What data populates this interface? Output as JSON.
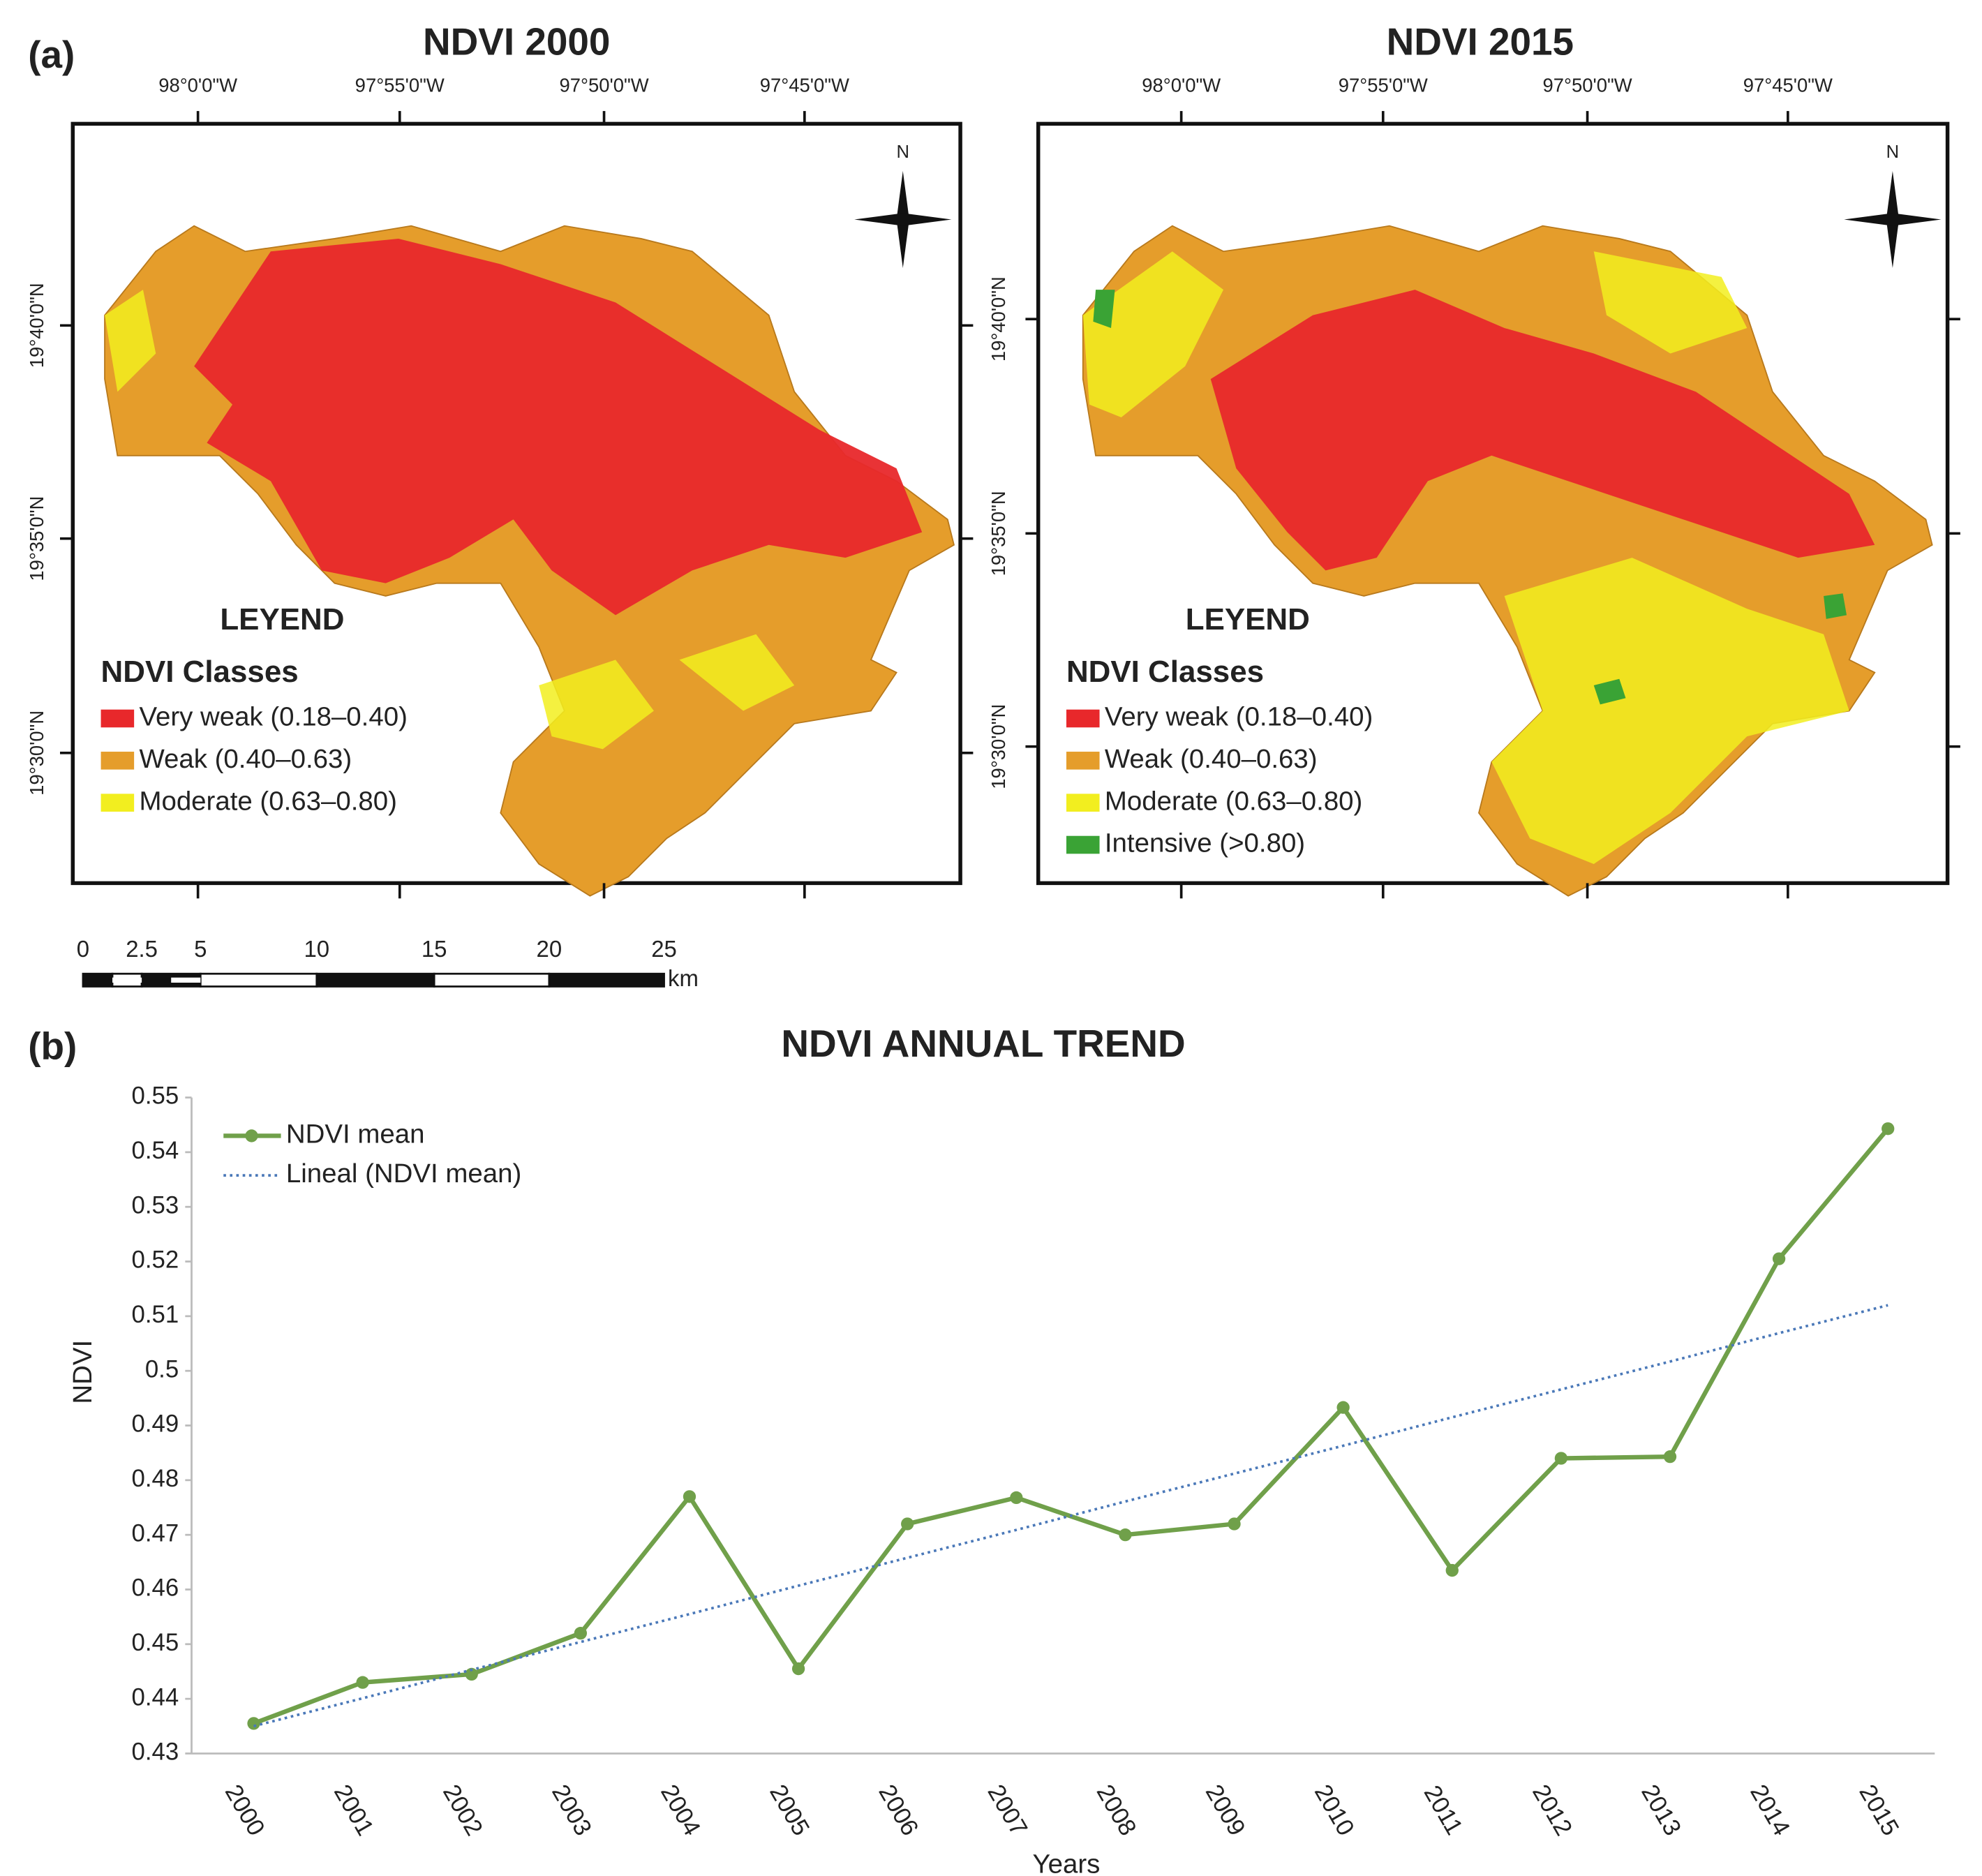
{
  "figure": {
    "panel_a": "(a)",
    "panel_b": "(b)"
  },
  "maps": [
    {
      "title": "NDVI 2000",
      "lon_labels": [
        "98°0'0\"W",
        "97°55'0\"W",
        "97°50'0\"W",
        "97°45'0\"W"
      ],
      "lat_labels": [
        "19°40'0\"N",
        "19°35'0\"N",
        "19°30'0\"N"
      ],
      "north": "N",
      "legend": {
        "heading": "LEYEND",
        "subheading": "NDVI Classes",
        "classes": [
          {
            "label": "Very weak (0.18–0.40)",
            "color": "#e8282b"
          },
          {
            "label": "Weak (0.40–0.63)",
            "color": "#e59d2b"
          },
          {
            "label": "Moderate (0.63–0.80)",
            "color": "#f2ee1f"
          }
        ]
      }
    },
    {
      "title": "NDVI 2015",
      "lon_labels": [
        "98°0'0\"W",
        "97°55'0\"W",
        "97°50'0\"W",
        "97°45'0\"W"
      ],
      "lat_labels": [
        "19°40'0\"N",
        "19°35'0\"N",
        "19°30'0\"N"
      ],
      "north": "N",
      "legend": {
        "heading": "LEYEND",
        "subheading": "NDVI Classes",
        "classes": [
          {
            "label": "Very weak (0.18–0.40)",
            "color": "#e8282b"
          },
          {
            "label": "Weak (0.40–0.63)",
            "color": "#e59d2b"
          },
          {
            "label": "Moderate (0.63–0.80)",
            "color": "#f2ee1f"
          },
          {
            "label": "Intensive (>0.80)",
            "color": "#3aa335"
          }
        ]
      }
    }
  ],
  "scale_bar": {
    "labels": [
      "0",
      "2.5",
      "5",
      "10",
      "15",
      "20",
      "25"
    ],
    "unit": "km"
  },
  "chart_data": {
    "type": "line",
    "title": "NDVI ANNUAL TREND",
    "x_label": "Years",
    "y_label": "NDVI",
    "categories": [
      "2000",
      "2001",
      "2002",
      "2003",
      "2004",
      "2005",
      "2006",
      "2007",
      "2008",
      "2009",
      "2010",
      "2011",
      "2012",
      "2013",
      "2014",
      "2015"
    ],
    "series": [
      {
        "name": "NDVI mean",
        "color": "#70a04a",
        "style": "solid",
        "markers": true,
        "values": [
          0.4355,
          0.443,
          0.4445,
          0.452,
          0.477,
          0.4455,
          0.472,
          0.4768,
          0.47,
          0.472,
          0.4933,
          0.4635,
          0.484,
          0.4843,
          0.5205,
          0.5443
        ]
      },
      {
        "name": "Lineal (NDVI mean)",
        "color": "#4a78b8",
        "style": "dotted",
        "markers": false,
        "values": [
          0.435,
          0.4401,
          0.4453,
          0.4504,
          0.4555,
          0.4607,
          0.4658,
          0.4709,
          0.4761,
          0.4812,
          0.4863,
          0.4915,
          0.4966,
          0.5017,
          0.5069,
          0.512
        ]
      }
    ],
    "ylim": [
      0.43,
      0.55
    ],
    "yticks": [
      0.43,
      0.44,
      0.45,
      0.46,
      0.47,
      0.48,
      0.49,
      0.5,
      0.51,
      0.52,
      0.53,
      0.54,
      0.55
    ],
    "grid": false,
    "legend": "upper left"
  }
}
